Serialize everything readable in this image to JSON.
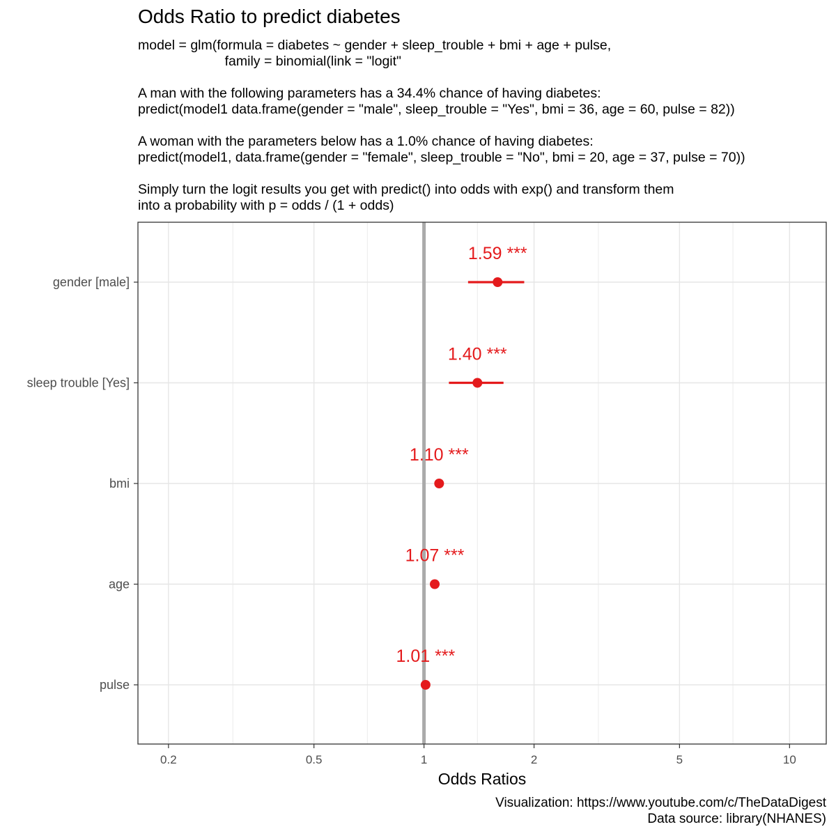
{
  "title": "Odds Ratio to predict diabetes",
  "subtitle_lines": [
    "model = glm(formula = diabetes ~ gender + sleep_trouble + bmi + age + pulse,",
    "                       family = binomial(link = \"logit\"",
    "",
    "A man with the following parameters has a 34.4% chance of having diabetes:",
    "predict(model1 data.frame(gender = \"male\", sleep_trouble = \"Yes\", bmi = 36, age = 60, pulse = 82))",
    "",
    "A woman with the parameters below has a 1.0% chance of having diabetes:",
    "predict(model1, data.frame(gender = \"female\", sleep_trouble = \"No\", bmi = 20, age = 37, pulse = 70))",
    "",
    "Simply turn the logit results you get with predict() into odds with exp() and transform them",
    "into a probability with p = odds / (1 + odds)"
  ],
  "caption_lines": [
    "Visualization: https://www.youtube.com/c/TheDataDigest",
    "Data source: library(NHANES)"
  ],
  "chart_data": {
    "type": "forest",
    "xlabel": "Odds Ratios",
    "x_scale": "log",
    "xlim": [
      0.165,
      12.6
    ],
    "x_ticks": [
      0.2,
      0.5,
      1,
      2,
      5,
      10
    ],
    "x_tick_labels": [
      "0.2",
      "0.5",
      "1",
      "2",
      "5",
      "10"
    ],
    "x_minor_ticks": [
      0.3,
      0.7,
      1.4,
      3,
      7
    ],
    "reference_line": 1,
    "grid": true,
    "point_color": "#e41a1c",
    "reference_color": "#aaaaaa",
    "terms": [
      {
        "label": "gender [male]",
        "estimate": 1.59,
        "ci": [
          1.32,
          1.88
        ],
        "label_text": "1.59 ***"
      },
      {
        "label": "sleep trouble [Yes]",
        "estimate": 1.4,
        "ci": [
          1.17,
          1.65
        ],
        "label_text": "1.40 ***"
      },
      {
        "label": "bmi",
        "estimate": 1.1,
        "ci": [
          1.09,
          1.11
        ],
        "label_text": "1.10 ***"
      },
      {
        "label": "age",
        "estimate": 1.07,
        "ci": [
          1.06,
          1.075
        ],
        "label_text": "1.07 ***"
      },
      {
        "label": "pulse",
        "estimate": 1.01,
        "ci": [
          1.005,
          1.015
        ],
        "label_text": "1.01 ***"
      }
    ]
  }
}
